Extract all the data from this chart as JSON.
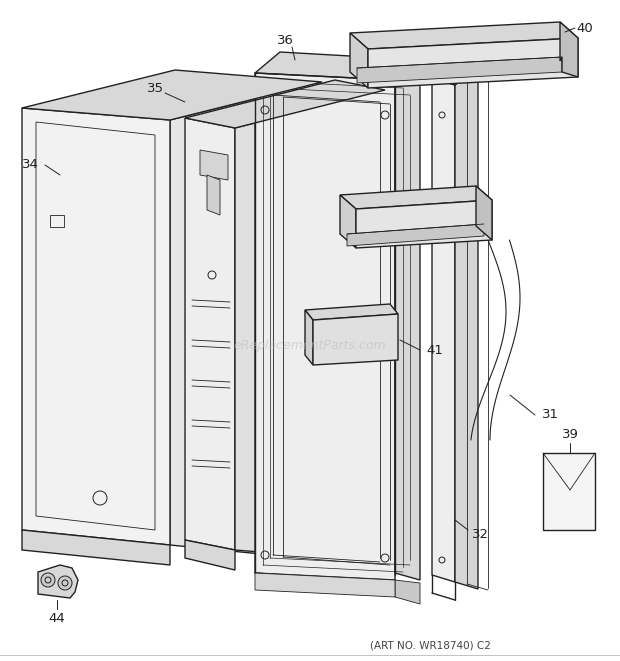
{
  "fig_width": 6.2,
  "fig_height": 6.61,
  "dpi": 100,
  "background_color": "#ffffff",
  "line_color": "#222222",
  "fill_color": "#f2f2f2",
  "dark_fill": "#d8d8d8",
  "footer_text": "(ART NO. WR18740) C2",
  "watermark": "eReplacementParts.com",
  "label_fontsize": 9.5,
  "footer_fontsize": 7.5,
  "watermark_fontsize": 9.0
}
